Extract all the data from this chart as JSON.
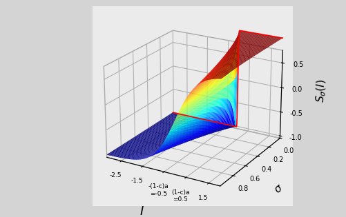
{
  "xlabel": "$I$",
  "ylabel": "$\\sigma$",
  "zlabel": "$S_{\\sigma}(I)$",
  "I_min": -3.2,
  "I_max": 2.0,
  "sigma_min": 0.01,
  "sigma_max": 1.0,
  "zlim_min": -1.05,
  "zlim_max": 0.75,
  "elev": 22,
  "azim": -60,
  "figsize": [
    5.02,
    3.15
  ],
  "dpi": 100,
  "background_color": "#d4d4d4",
  "pane_color": "#ebebeb",
  "n_I": 100,
  "n_sigma": 80,
  "xticks": [
    -2.5,
    -1.5,
    -0.5,
    0.5,
    1.5
  ],
  "yticks": [
    0.0,
    0.2,
    0.4,
    0.6,
    0.8
  ],
  "zticks": [
    -1.0,
    -0.5,
    0.0,
    0.5
  ],
  "xticklabels": [
    "-2.5",
    "-1.5",
    "-(1-c)a\n=-0.5",
    "(1-c)a\n=0.5",
    "1.5"
  ],
  "yticklabels": [
    "0.0",
    "0.2",
    "0.4",
    "0.6",
    "0.8"
  ],
  "zticklabels": [
    "-1.0",
    "-0.5",
    "0.0",
    "0.5"
  ]
}
